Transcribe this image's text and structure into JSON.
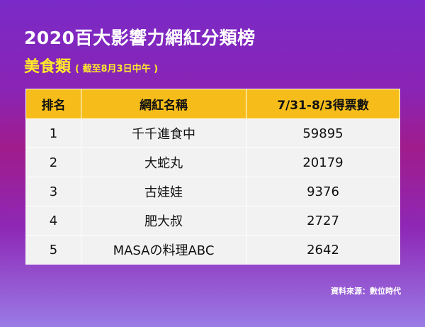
{
  "header": {
    "title": "2020百大影響力網紅分類榜",
    "category": "美食類",
    "note": "( 截至8月3日中午 )"
  },
  "table": {
    "columns": [
      "排名",
      "網紅名稱",
      "7/31-8/3得票數"
    ],
    "rows": [
      {
        "rank": "1",
        "name": "千千進食中",
        "votes": "59895"
      },
      {
        "rank": "2",
        "name": "大蛇丸",
        "votes": "20179"
      },
      {
        "rank": "3",
        "name": "古娃娃",
        "votes": "9376"
      },
      {
        "rank": "4",
        "name": "肥大叔",
        "votes": "2727"
      },
      {
        "rank": "5",
        "name": "MASAの料理ABC",
        "votes": "2642"
      }
    ]
  },
  "footer": {
    "source": "資料來源：數位時代"
  },
  "colors": {
    "header_bg": "#f6bd1a",
    "category_text": "#ffea2a",
    "cell_bg": "#f2f2f2"
  }
}
